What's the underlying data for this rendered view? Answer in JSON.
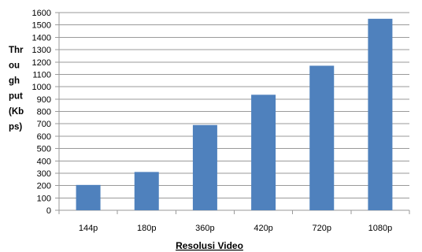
{
  "chart_data": {
    "type": "bar",
    "categories": [
      "144p",
      "180p",
      "360p",
      "420p",
      "720p",
      "1080p"
    ],
    "values": [
      205,
      310,
      690,
      935,
      1170,
      1550
    ],
    "xlabel": "Resolusi Video",
    "ylabel_lines": [
      "Thr",
      "ou",
      "gh",
      "put",
      "(Kb",
      "ps)"
    ],
    "ylim": [
      0,
      1600
    ],
    "yticks": [
      0,
      100,
      200,
      300,
      400,
      500,
      600,
      700,
      800,
      900,
      1000,
      1100,
      1200,
      1300,
      1400,
      1500,
      1600
    ],
    "grid": true,
    "legend": "none",
    "bar_color": "#4F81BD",
    "grid_color": "#9a9a9a"
  }
}
